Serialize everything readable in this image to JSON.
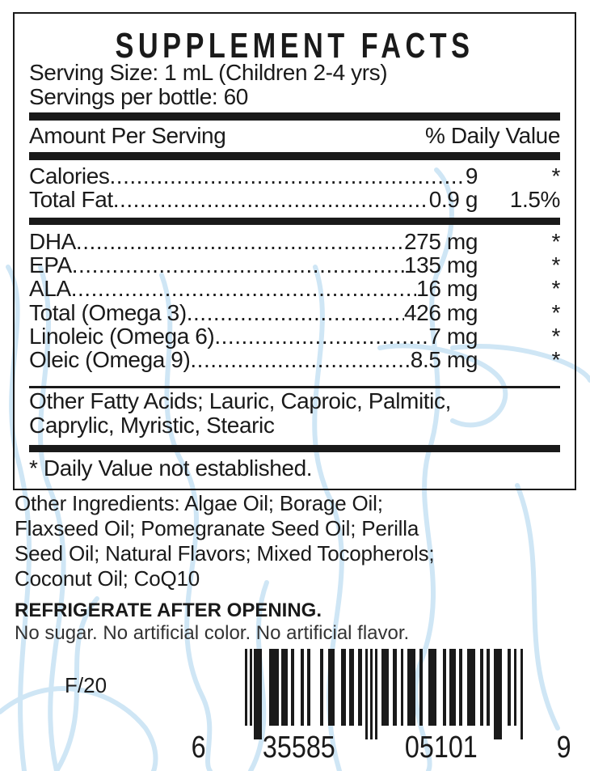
{
  "label": {
    "title": "SUPPLEMENT FACTS",
    "serving_size": "Serving Size: 1 mL (Children 2-4 yrs)",
    "servings_per_bottle": "Servings per bottle: 60",
    "header_amount": "Amount Per Serving",
    "header_dv": "% Daily Value",
    "basic_rows": [
      {
        "name": "Calories",
        "amount": "9",
        "dv": "*"
      },
      {
        "name": "Total Fat",
        "amount": "0.9 g",
        "dv": "1.5%"
      }
    ],
    "fatty_rows": [
      {
        "name": "DHA",
        "amount": "275 mg",
        "dv": "*"
      },
      {
        "name": "EPA",
        "amount": "135 mg",
        "dv": "*"
      },
      {
        "name": "ALA",
        "amount": "16 mg",
        "dv": "*"
      },
      {
        "name": "Total (Omega 3)",
        "amount": "426 mg",
        "dv": "*"
      },
      {
        "name": "Linoleic (Omega 6)",
        "amount": "7 mg",
        "dv": "*"
      },
      {
        "name": "Oleic (Omega 9)",
        "amount": "8.5 mg",
        "dv": "*"
      }
    ],
    "other_fatty_acids": [
      "Other Fatty Acids; Lauric, Caproic, Palmitic,",
      "Caprylic, Myristic, Stearic"
    ],
    "footnote": "* Daily Value not established."
  },
  "other_ingredients": [
    "Other Ingredients: Algae Oil; Borage Oil;",
    "Flaxseed Oil; Pomegranate Seed Oil; Perilla",
    "Seed Oil; Natural Flavors; Mixed Tocopherols;",
    "Coconut Oil; CoQ10"
  ],
  "storage": "REFRIGERATE AFTER OPENING.",
  "claims": "No sugar. No artificial color. No artificial flavor.",
  "lot_code": "F/20",
  "barcode": {
    "digits": [
      "6",
      "35585",
      "05101",
      "9"
    ]
  },
  "colors": {
    "ink": "#1a1a1a",
    "swirl": "#cfe6f5"
  }
}
